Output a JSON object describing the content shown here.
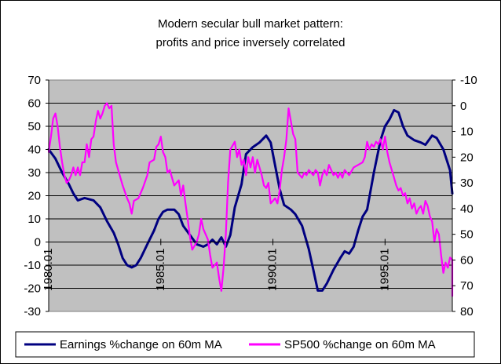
{
  "chart_data": {
    "type": "line",
    "title_lines": [
      "Modern secular bull market pattern:",
      "profits and price inversely correlated"
    ],
    "x_tick_labels": [
      "1980.01",
      "1985.01",
      "1990.01",
      "1995.01"
    ],
    "x_ticks": [
      1980.0,
      1985.0,
      1990.0,
      1995.0
    ],
    "xlim": [
      1980.0,
      1998.0
    ],
    "y_left": {
      "ylim": [
        -30,
        70
      ],
      "ticks": [
        -30,
        -20,
        -10,
        0,
        10,
        20,
        30,
        40,
        50,
        60,
        70
      ]
    },
    "y_right": {
      "ylim": [
        80,
        -10
      ],
      "inverted": true,
      "ticks": [
        -10,
        0,
        10,
        20,
        30,
        40,
        50,
        60,
        70,
        80
      ]
    },
    "plot_background": "#C0C0C0",
    "grid": "horizontal",
    "legend_position": "bottom",
    "series": [
      {
        "name": "Earnings %change on 60m MA",
        "axis": "left",
        "color": "#000080",
        "points": [
          [
            1980.0,
            40
          ],
          [
            1980.3,
            36
          ],
          [
            1980.6,
            30
          ],
          [
            1980.9,
            25
          ],
          [
            1981.1,
            21
          ],
          [
            1981.3,
            18
          ],
          [
            1981.6,
            19
          ],
          [
            1982.0,
            18
          ],
          [
            1982.3,
            15
          ],
          [
            1982.6,
            9
          ],
          [
            1982.9,
            4
          ],
          [
            1983.1,
            -1
          ],
          [
            1983.3,
            -7
          ],
          [
            1983.5,
            -10
          ],
          [
            1983.7,
            -11
          ],
          [
            1983.9,
            -10
          ],
          [
            1984.1,
            -7
          ],
          [
            1984.4,
            -1
          ],
          [
            1984.7,
            5
          ],
          [
            1984.9,
            10
          ],
          [
            1985.1,
            13
          ],
          [
            1985.3,
            14
          ],
          [
            1985.6,
            14
          ],
          [
            1985.8,
            12
          ],
          [
            1986.0,
            7
          ],
          [
            1986.3,
            3
          ],
          [
            1986.6,
            -1
          ],
          [
            1986.9,
            -2
          ],
          [
            1987.1,
            -1
          ],
          [
            1987.3,
            1
          ],
          [
            1987.5,
            -1
          ],
          [
            1987.7,
            2
          ],
          [
            1987.9,
            -2
          ],
          [
            1988.1,
            3
          ],
          [
            1988.3,
            15
          ],
          [
            1988.6,
            25
          ],
          [
            1988.8,
            38
          ],
          [
            1989.1,
            41
          ],
          [
            1989.4,
            43
          ],
          [
            1989.7,
            46
          ],
          [
            1989.9,
            43
          ],
          [
            1990.1,
            33
          ],
          [
            1990.3,
            23
          ],
          [
            1990.5,
            16
          ],
          [
            1990.8,
            14
          ],
          [
            1991.0,
            12
          ],
          [
            1991.3,
            7
          ],
          [
            1991.6,
            -3
          ],
          [
            1991.8,
            -12
          ],
          [
            1992.0,
            -21
          ],
          [
            1992.2,
            -21
          ],
          [
            1992.4,
            -18
          ],
          [
            1992.7,
            -12
          ],
          [
            1993.0,
            -7
          ],
          [
            1993.2,
            -4
          ],
          [
            1993.4,
            -5
          ],
          [
            1993.6,
            -2
          ],
          [
            1993.8,
            5
          ],
          [
            1994.0,
            11
          ],
          [
            1994.2,
            14
          ],
          [
            1994.5,
            30
          ],
          [
            1994.8,
            44
          ],
          [
            1995.0,
            50
          ],
          [
            1995.2,
            53
          ],
          [
            1995.4,
            57
          ],
          [
            1995.6,
            56
          ],
          [
            1995.8,
            50
          ],
          [
            1996.0,
            46
          ],
          [
            1996.3,
            44
          ],
          [
            1996.6,
            43
          ],
          [
            1996.8,
            42
          ],
          [
            1997.1,
            46
          ],
          [
            1997.3,
            45
          ],
          [
            1997.6,
            40
          ],
          [
            1997.9,
            31
          ],
          [
            1998.0,
            21
          ]
        ]
      },
      {
        "name": "SP500 %change on 60m MA",
        "axis": "right",
        "color": "#FF00FF",
        "points": [
          [
            1980.0,
            18
          ],
          [
            1980.1,
            12
          ],
          [
            1980.2,
            5
          ],
          [
            1980.3,
            3
          ],
          [
            1980.4,
            8
          ],
          [
            1980.5,
            16
          ],
          [
            1980.6,
            22
          ],
          [
            1980.7,
            27
          ],
          [
            1980.8,
            30
          ],
          [
            1980.9,
            29
          ],
          [
            1981.0,
            27
          ],
          [
            1981.1,
            24
          ],
          [
            1981.2,
            27
          ],
          [
            1981.3,
            24
          ],
          [
            1981.4,
            27
          ],
          [
            1981.5,
            22
          ],
          [
            1981.6,
            22
          ],
          [
            1981.7,
            15
          ],
          [
            1981.8,
            20
          ],
          [
            1981.9,
            13
          ],
          [
            1982.0,
            12
          ],
          [
            1982.1,
            6
          ],
          [
            1982.2,
            2
          ],
          [
            1982.3,
            5
          ],
          [
            1982.4,
            3
          ],
          [
            1982.5,
            0
          ],
          [
            1982.6,
            -1
          ],
          [
            1982.7,
            1
          ],
          [
            1982.8,
            0
          ],
          [
            1982.9,
            15
          ],
          [
            1983.0,
            22
          ],
          [
            1983.1,
            25
          ],
          [
            1983.3,
            31
          ],
          [
            1983.5,
            36
          ],
          [
            1983.6,
            38
          ],
          [
            1983.7,
            42
          ],
          [
            1983.8,
            37
          ],
          [
            1984.0,
            36
          ],
          [
            1984.2,
            32
          ],
          [
            1984.4,
            27
          ],
          [
            1984.5,
            22
          ],
          [
            1984.7,
            21
          ],
          [
            1984.8,
            16
          ],
          [
            1984.9,
            15
          ],
          [
            1985.0,
            12
          ],
          [
            1985.1,
            18
          ],
          [
            1985.2,
            20
          ],
          [
            1985.3,
            26
          ],
          [
            1985.4,
            25
          ],
          [
            1985.6,
            31
          ],
          [
            1985.8,
            29
          ],
          [
            1985.9,
            35
          ],
          [
            1986.0,
            31
          ],
          [
            1986.1,
            38
          ],
          [
            1986.2,
            44
          ],
          [
            1986.3,
            51
          ],
          [
            1986.4,
            56
          ],
          [
            1986.6,
            53
          ],
          [
            1986.7,
            50
          ],
          [
            1986.8,
            44
          ],
          [
            1986.9,
            48
          ],
          [
            1987.1,
            52
          ],
          [
            1987.2,
            58
          ],
          [
            1987.3,
            63
          ],
          [
            1987.5,
            61
          ],
          [
            1987.6,
            67
          ],
          [
            1987.7,
            72
          ],
          [
            1987.8,
            63
          ],
          [
            1987.9,
            50
          ],
          [
            1988.0,
            30
          ],
          [
            1988.1,
            17
          ],
          [
            1988.3,
            14
          ],
          [
            1988.4,
            20
          ],
          [
            1988.5,
            17
          ],
          [
            1988.6,
            23
          ],
          [
            1988.7,
            21
          ],
          [
            1988.8,
            27
          ],
          [
            1988.9,
            20
          ],
          [
            1989.0,
            24
          ],
          [
            1989.1,
            20
          ],
          [
            1989.2,
            26
          ],
          [
            1989.3,
            21
          ],
          [
            1989.5,
            27
          ],
          [
            1989.6,
            31
          ],
          [
            1989.7,
            32
          ],
          [
            1989.8,
            30
          ],
          [
            1989.9,
            38
          ],
          [
            1990.1,
            36
          ],
          [
            1990.2,
            38
          ],
          [
            1990.3,
            33
          ],
          [
            1990.4,
            25
          ],
          [
            1990.5,
            20
          ],
          [
            1990.6,
            13
          ],
          [
            1990.7,
            1
          ],
          [
            1990.8,
            6
          ],
          [
            1990.9,
            11
          ],
          [
            1991.0,
            13
          ],
          [
            1991.1,
            26
          ],
          [
            1991.3,
            28
          ],
          [
            1991.4,
            26
          ],
          [
            1991.5,
            27
          ],
          [
            1991.6,
            25
          ],
          [
            1991.8,
            27
          ],
          [
            1991.9,
            25
          ],
          [
            1992.0,
            26
          ],
          [
            1992.1,
            31
          ],
          [
            1992.2,
            27
          ],
          [
            1992.3,
            25
          ],
          [
            1992.4,
            27
          ],
          [
            1992.5,
            23
          ],
          [
            1992.7,
            27
          ],
          [
            1992.8,
            26
          ],
          [
            1992.9,
            28
          ],
          [
            1993.0,
            26
          ],
          [
            1993.1,
            28
          ],
          [
            1993.2,
            25
          ],
          [
            1993.4,
            27
          ],
          [
            1993.6,
            24
          ],
          [
            1993.8,
            23
          ],
          [
            1994.0,
            22
          ],
          [
            1994.1,
            20
          ],
          [
            1994.2,
            14
          ],
          [
            1994.3,
            17
          ],
          [
            1994.4,
            15
          ],
          [
            1994.5,
            16
          ],
          [
            1994.6,
            14
          ],
          [
            1994.7,
            15
          ],
          [
            1994.8,
            13
          ],
          [
            1994.9,
            17
          ],
          [
            1995.0,
            12
          ],
          [
            1995.1,
            18
          ],
          [
            1995.2,
            22
          ],
          [
            1995.3,
            25
          ],
          [
            1995.4,
            28
          ],
          [
            1995.5,
            31
          ],
          [
            1995.6,
            33
          ],
          [
            1995.7,
            32
          ],
          [
            1995.8,
            35
          ],
          [
            1995.9,
            34
          ],
          [
            1996.0,
            38
          ],
          [
            1996.1,
            36
          ],
          [
            1996.2,
            40
          ],
          [
            1996.3,
            38
          ],
          [
            1996.4,
            42
          ],
          [
            1996.5,
            40
          ],
          [
            1996.6,
            39
          ],
          [
            1996.7,
            42
          ],
          [
            1996.8,
            37
          ],
          [
            1996.9,
            39
          ],
          [
            1997.0,
            43
          ],
          [
            1997.1,
            45
          ],
          [
            1997.2,
            53
          ],
          [
            1997.3,
            48
          ],
          [
            1997.4,
            50
          ],
          [
            1997.5,
            58
          ],
          [
            1997.6,
            65
          ],
          [
            1997.7,
            61
          ],
          [
            1997.8,
            63
          ],
          [
            1997.9,
            59
          ],
          [
            1998.0,
            60
          ],
          [
            1998.0,
            70
          ],
          [
            1998.0,
            74
          ]
        ]
      }
    ]
  }
}
